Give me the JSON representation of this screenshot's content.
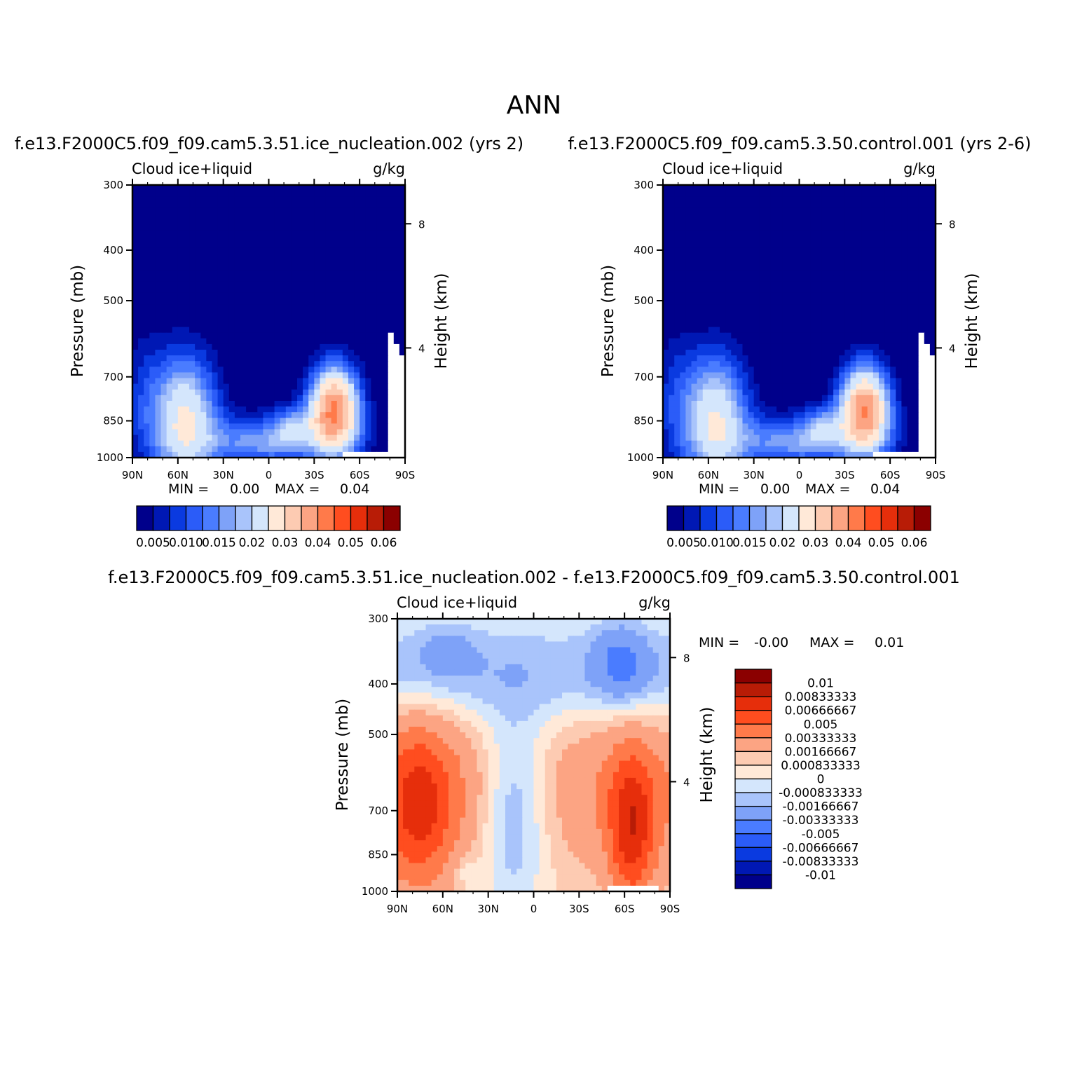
{
  "figure_title": "ANN",
  "colors": {
    "abs_scale": [
      "#00008b",
      "#0018b4",
      "#0a3ae0",
      "#2b5cf8",
      "#4a7cff",
      "#7ea2f8",
      "#a9c4fb",
      "#d4e6fc",
      "#ffe9d8",
      "#fdcbb2",
      "#fca483",
      "#ff7a4a",
      "#ff4d1f",
      "#e62e0b",
      "#b81c06",
      "#8b0000"
    ],
    "diff_scale": [
      "#00008b",
      "#0018b4",
      "#0a3ae0",
      "#2b5cf8",
      "#4a7cff",
      "#7ea2f8",
      "#a9c4fb",
      "#d4e6fc",
      "#ffe9d8",
      "#fdcbb2",
      "#fca483",
      "#ff7a4a",
      "#ff4d1f",
      "#e62e0b",
      "#b81c06",
      "#8b0000"
    ]
  },
  "chart_data": [
    {
      "type": "heatmap",
      "title": "f.e13.F2000C5.f09_f09.cam5.3.51.ice_nucleation.002 (yrs 2)",
      "left_label": "Cloud ice+liquid",
      "right_label": "g/kg",
      "xlabel": "",
      "ylabel": "Pressure (mb)",
      "y2label": "Height (km)",
      "x_ticks": [
        "90N",
        "60N",
        "30N",
        "0",
        "30S",
        "60S",
        "90S"
      ],
      "y_ticks": [
        "300",
        "400",
        "500",
        "700",
        "850",
        "1000"
      ],
      "y2_ticks": [
        "8",
        "4"
      ],
      "ylim": [
        1000,
        300
      ],
      "y_scale": "log",
      "min_label": "MIN =",
      "min_value": "0.00",
      "max_label": "MAX =",
      "max_value": "0.04",
      "colorbar_labels": [
        "0.005",
        "0.010",
        "0.015",
        "0.02",
        "0.03",
        "0.04",
        "0.05",
        "0.06"
      ],
      "features": [
        {
          "lat": 57,
          "p": 880,
          "value": 0.022
        },
        {
          "lat": -44,
          "p": 870,
          "value": 0.04
        },
        {
          "lat": 10,
          "p": 900,
          "value": 0.012
        }
      ]
    },
    {
      "type": "heatmap",
      "title": "f.e13.F2000C5.f09_f09.cam5.3.50.control.001 (yrs 2-6)",
      "left_label": "Cloud ice+liquid",
      "right_label": "g/kg",
      "xlabel": "",
      "ylabel": "Pressure (mb)",
      "y2label": "Height (km)",
      "x_ticks": [
        "90N",
        "60N",
        "30N",
        "0",
        "30S",
        "60S",
        "90S"
      ],
      "y_ticks": [
        "300",
        "400",
        "500",
        "700",
        "850",
        "1000"
      ],
      "y2_ticks": [
        "8",
        "4"
      ],
      "ylim": [
        1000,
        300
      ],
      "y_scale": "log",
      "min_label": "MIN =",
      "min_value": "0.00",
      "max_label": "MAX =",
      "max_value": "0.04",
      "colorbar_labels": [
        "0.005",
        "0.010",
        "0.015",
        "0.02",
        "0.03",
        "0.04",
        "0.05",
        "0.06"
      ],
      "features": [
        {
          "lat": 57,
          "p": 880,
          "value": 0.021
        },
        {
          "lat": -44,
          "p": 870,
          "value": 0.039
        },
        {
          "lat": 10,
          "p": 900,
          "value": 0.012
        }
      ]
    },
    {
      "type": "heatmap",
      "title": "f.e13.F2000C5.f09_f09.cam5.3.51.ice_nucleation.002 - f.e13.F2000C5.f09_f09.cam5.3.50.control.001",
      "left_label": "Cloud ice+liquid",
      "right_label": "g/kg",
      "xlabel": "",
      "ylabel": "Pressure (mb)",
      "y2label": "Height (km)",
      "x_ticks": [
        "90N",
        "60N",
        "30N",
        "0",
        "30S",
        "60S",
        "90S"
      ],
      "y_ticks": [
        "300",
        "400",
        "500",
        "700",
        "850",
        "1000"
      ],
      "y2_ticks": [
        "8",
        "4"
      ],
      "ylim": [
        1000,
        300
      ],
      "y_scale": "log",
      "min_label": "MIN =",
      "min_value": "-0.00",
      "max_label": "MAX =",
      "max_value": "0.01",
      "colorbar_labels": [
        "0.01",
        "0.00833333",
        "0.00666667",
        "0.005",
        "0.00333333",
        "0.00166667",
        "0.000833333",
        "0",
        "-0.000833333",
        "-0.00166667",
        "-0.00333333",
        "-0.005",
        "-0.00666667",
        "-0.00833333",
        "-0.01"
      ],
      "features": [
        {
          "lat": 75,
          "p": 780,
          "value": 0.004
        },
        {
          "lat": -65,
          "p": 900,
          "value": 0.006
        },
        {
          "lat": -60,
          "p": 420,
          "value": -0.003
        },
        {
          "lat": 55,
          "p": 420,
          "value": -0.002
        }
      ]
    }
  ]
}
